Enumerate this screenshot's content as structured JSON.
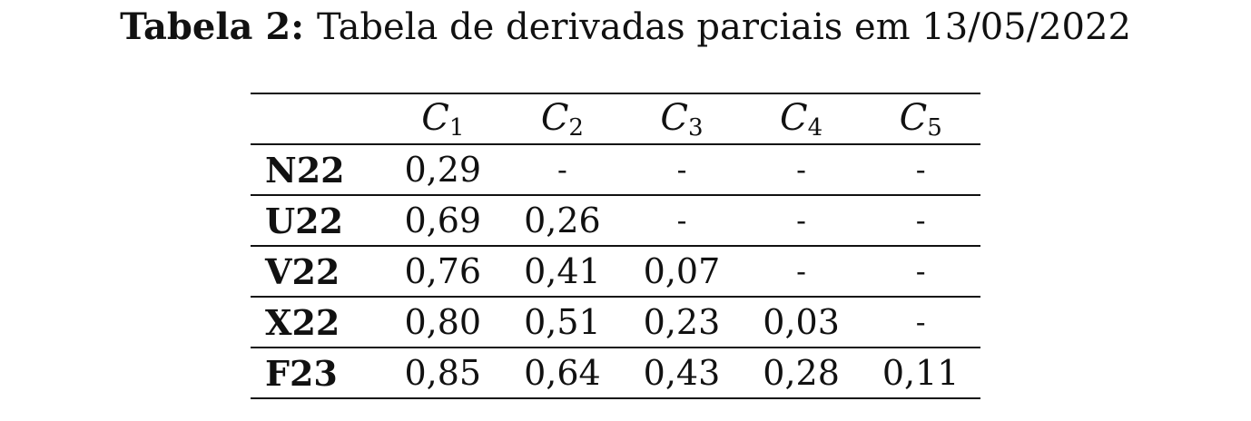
{
  "caption": {
    "label": "Tabela 2:",
    "text": "Tabela de derivadas parciais em 13/05/2022"
  },
  "table": {
    "columns": [
      {
        "letter": "C",
        "index": "1"
      },
      {
        "letter": "C",
        "index": "2"
      },
      {
        "letter": "C",
        "index": "3"
      },
      {
        "letter": "C",
        "index": "4"
      },
      {
        "letter": "C",
        "index": "5"
      }
    ],
    "rows": [
      {
        "label": "N22",
        "cells": [
          "0,29",
          "-",
          "-",
          "-",
          "-"
        ]
      },
      {
        "label": "U22",
        "cells": [
          "0,69",
          "0,26",
          "-",
          "-",
          "-"
        ]
      },
      {
        "label": "V22",
        "cells": [
          "0,76",
          "0,41",
          "0,07",
          "-",
          "-"
        ]
      },
      {
        "label": "X22",
        "cells": [
          "0,80",
          "0,51",
          "0,23",
          "0,03",
          "-"
        ]
      },
      {
        "label": "F23",
        "cells": [
          "0,85",
          "0,64",
          "0,43",
          "0,28",
          "0,11"
        ]
      }
    ]
  }
}
